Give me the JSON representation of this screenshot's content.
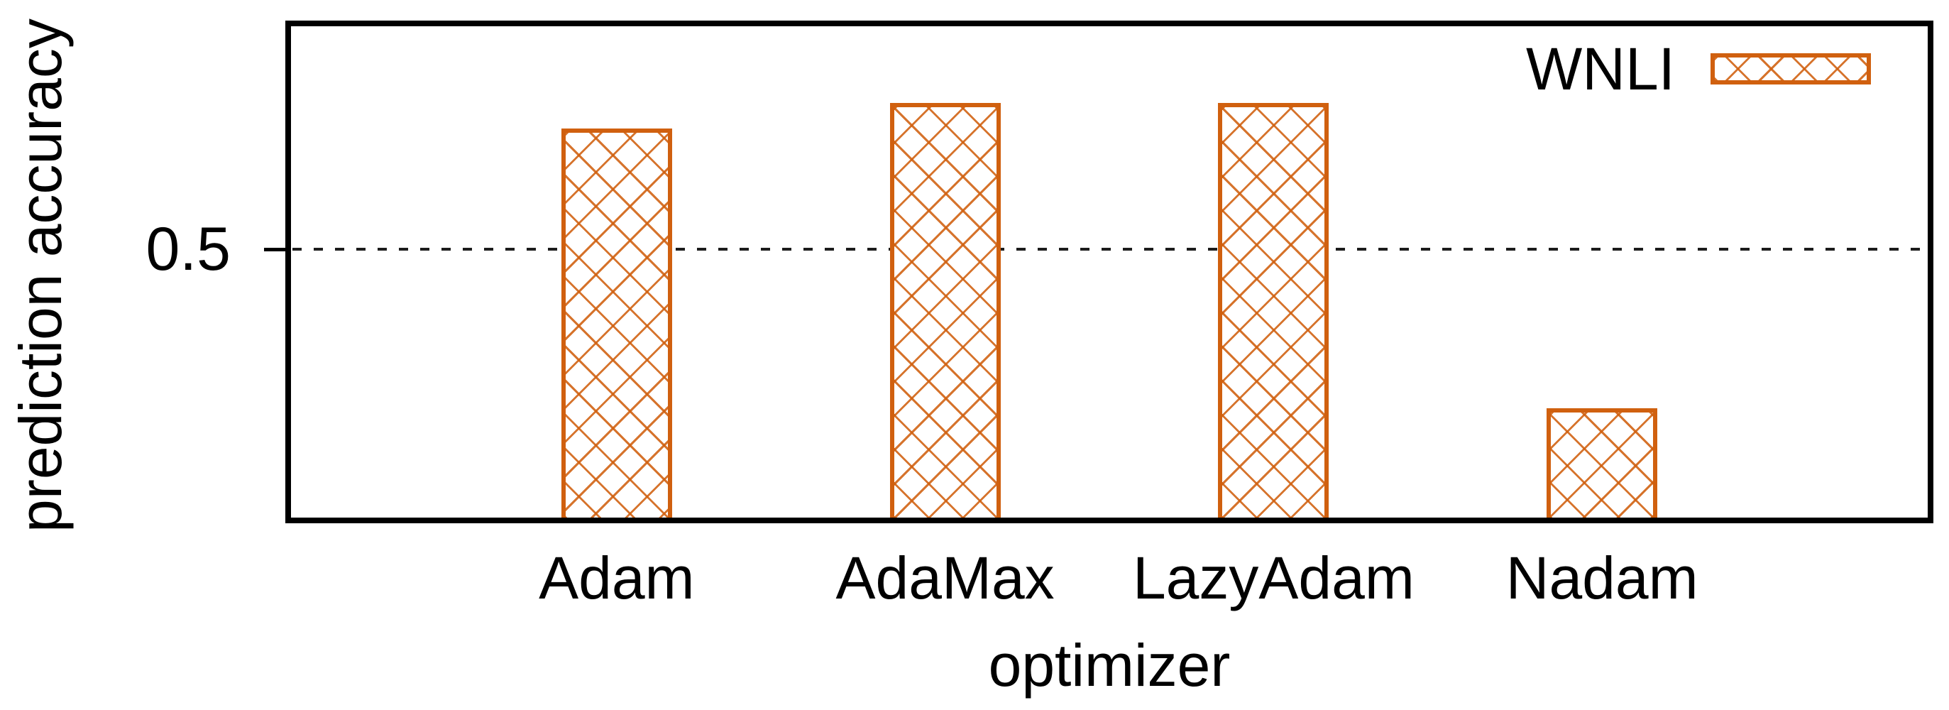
{
  "chart": {
    "legend_label": "WNLI",
    "ytick_label": "0.5"
  },
  "chart_data": {
    "type": "bar",
    "categories": [
      "Adam",
      "AdaMax",
      "LazyAdam",
      "Nadam"
    ],
    "series": [
      {
        "name": "WNLI",
        "values": [
          0.634,
          0.662,
          0.662,
          0.324
        ]
      }
    ],
    "title": "",
    "xlabel": "optimizer",
    "ylabel": "prediction accuracy",
    "ylim": [
      0.2,
      0.75
    ],
    "yticks": [
      {
        "value": 0.5,
        "label": "0.5"
      }
    ],
    "grid": "horizontal dashed line at labeled ytick only",
    "legend_position": "top-right inside plot",
    "bar_color": "#d0600f",
    "hatch_pattern": "diagonal crosshatch",
    "plot_border_color": "#000000",
    "background_color": "#ffffff"
  }
}
